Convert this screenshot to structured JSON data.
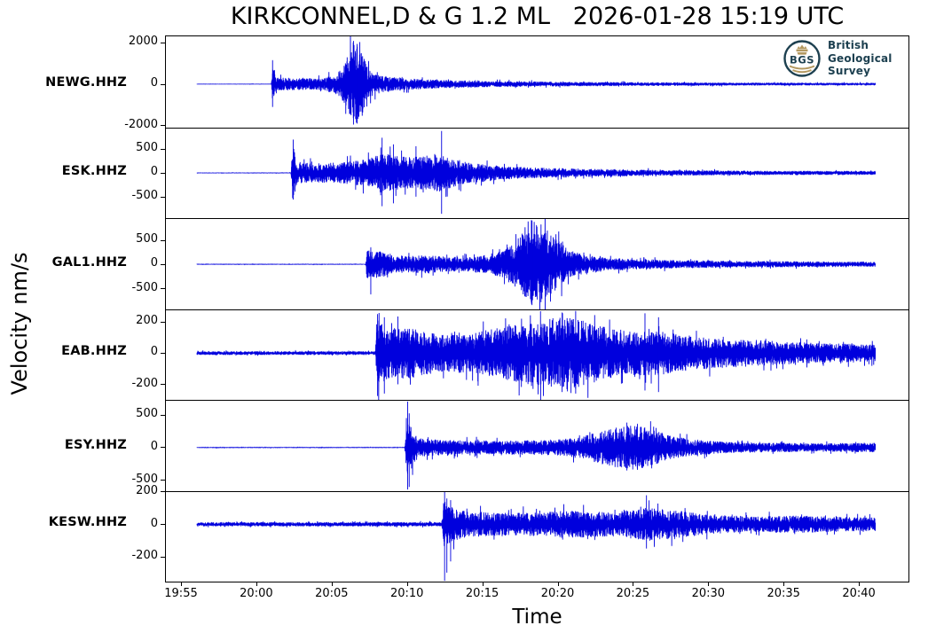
{
  "title": "KIRKCONNEL,D & G 1.2 ML   2026-01-28 15:19 UTC",
  "xlabel": "Time",
  "ylabel": "Velocity nm/s",
  "logo": {
    "abbr": "BGS",
    "lines": [
      "British",
      "Geological",
      "Survey"
    ],
    "teal": "#1d4050",
    "gold": "#b3985f"
  },
  "colors": {
    "trace": "#0000dd",
    "axis": "#000000",
    "background": "#ffffff"
  },
  "chart_data": {
    "type": "line",
    "title": "KIRKCONNEL,D & G 1.2 ML   2026-01-28 15:19 UTC",
    "xlabel": "Time",
    "ylabel": "Velocity nm/s",
    "x_tick_labels": [
      "19:55",
      "20:00",
      "20:05",
      "20:10",
      "20:15",
      "20:20",
      "20:25",
      "20:30",
      "20:35",
      "20:40"
    ],
    "x_tick_interval_min": 5,
    "trace_start_min": 1.06,
    "trace_end_min": 46.1,
    "grid": false,
    "legend": "none",
    "stations": [
      {
        "label": "NEWG.HHZ",
        "yticks": [
          2000,
          0,
          -2000
        ],
        "ylim": [
          -2100,
          2300
        ],
        "seed": 11,
        "envelope": [
          [
            1.06,
            15
          ],
          [
            6.0,
            15
          ],
          [
            6.06,
            900
          ],
          [
            6.3,
            320
          ],
          [
            8.0,
            280
          ],
          [
            9.5,
            300
          ],
          [
            10.3,
            500
          ],
          [
            10.8,
            900
          ],
          [
            11.2,
            1600
          ],
          [
            11.6,
            2050
          ],
          [
            12.0,
            1700
          ],
          [
            12.3,
            900
          ],
          [
            12.8,
            500
          ],
          [
            13.5,
            380
          ],
          [
            15,
            280
          ],
          [
            17,
            200
          ],
          [
            20,
            150
          ],
          [
            25,
            110
          ],
          [
            30,
            90
          ],
          [
            38,
            70
          ],
          [
            46.1,
            60
          ]
        ],
        "spikes": [
          [
            6.08,
            1150,
            -1100
          ],
          [
            11.45,
            2080,
            -1950
          ],
          [
            11.7,
            1800,
            -1900
          ]
        ]
      },
      {
        "label": "ESK.HHZ",
        "yticks": [
          500,
          0,
          -500
        ],
        "ylim": [
          -950,
          950
        ],
        "seed": 22,
        "envelope": [
          [
            1.06,
            9
          ],
          [
            7.3,
            9
          ],
          [
            7.42,
            650
          ],
          [
            7.7,
            220
          ],
          [
            9,
            200
          ],
          [
            11,
            230
          ],
          [
            12.5,
            300
          ],
          [
            13.3,
            420
          ],
          [
            14.0,
            380
          ],
          [
            15,
            330
          ],
          [
            16,
            350
          ],
          [
            17.2,
            420
          ],
          [
            18,
            300
          ],
          [
            19,
            220
          ],
          [
            20.5,
            170
          ],
          [
            22,
            130
          ],
          [
            25,
            100
          ],
          [
            28,
            80
          ],
          [
            32,
            60
          ],
          [
            38,
            45
          ],
          [
            46.1,
            40
          ]
        ],
        "spikes": [
          [
            7.45,
            700,
            -560
          ],
          [
            13.35,
            740,
            -700
          ],
          [
            14.1,
            600,
            -640
          ],
          [
            15.6,
            560,
            -500
          ],
          [
            17.3,
            880,
            -860
          ]
        ]
      },
      {
        "label": "GAL1.HHZ",
        "yticks": [
          500,
          0,
          -500
        ],
        "ylim": [
          -930,
          950
        ],
        "seed": 33,
        "envelope": [
          [
            1.06,
            9
          ],
          [
            12.25,
            9
          ],
          [
            12.35,
            320
          ],
          [
            12.7,
            260
          ],
          [
            13.2,
            300
          ],
          [
            13.8,
            200
          ],
          [
            15,
            170
          ],
          [
            16.5,
            190
          ],
          [
            17.5,
            150
          ],
          [
            19,
            150
          ],
          [
            20.5,
            200
          ],
          [
            21.5,
            300
          ],
          [
            22.3,
            520
          ],
          [
            23.0,
            750
          ],
          [
            23.6,
            820
          ],
          [
            24.3,
            700
          ],
          [
            25.0,
            500
          ],
          [
            25.8,
            300
          ],
          [
            26.8,
            200
          ],
          [
            28,
            150
          ],
          [
            30,
            110
          ],
          [
            33,
            85
          ],
          [
            37,
            65
          ],
          [
            42,
            58
          ],
          [
            46.1,
            52
          ]
        ],
        "spikes": [
          [
            12.6,
            350,
            -620
          ],
          [
            23.3,
            900,
            -840
          ],
          [
            23.9,
            820,
            -780
          ]
        ]
      },
      {
        "label": "EAB.HHZ",
        "yticks": [
          200,
          0,
          -200
        ],
        "ylim": [
          -300,
          280
        ],
        "seed": 44,
        "envelope": [
          [
            1.06,
            12
          ],
          [
            12.9,
            12
          ],
          [
            13.0,
            230
          ],
          [
            13.4,
            180
          ],
          [
            14,
            160
          ],
          [
            15,
            170
          ],
          [
            16,
            140
          ],
          [
            17.5,
            120
          ],
          [
            19,
            130
          ],
          [
            20.5,
            150
          ],
          [
            22,
            180
          ],
          [
            23.5,
            200
          ],
          [
            25,
            230
          ],
          [
            26,
            240
          ],
          [
            27,
            200
          ],
          [
            28.5,
            160
          ],
          [
            30,
            140
          ],
          [
            31.5,
            150
          ],
          [
            33,
            120
          ],
          [
            35,
            100
          ],
          [
            38,
            85
          ],
          [
            42,
            65
          ],
          [
            46.1,
            55
          ]
        ],
        "spikes": [
          [
            13.05,
            250,
            -275
          ],
          [
            13.5,
            230,
            -260
          ],
          [
            14.4,
            235,
            -200
          ],
          [
            25.3,
            260,
            -250
          ],
          [
            26.2,
            270,
            -260
          ],
          [
            30.8,
            255,
            -240
          ],
          [
            31.7,
            230,
            -250
          ]
        ]
      },
      {
        "label": "ESY.HHZ",
        "yticks": [
          500,
          0,
          -500
        ],
        "ylim": [
          -665,
          725
        ],
        "seed": 55,
        "envelope": [
          [
            1.06,
            8
          ],
          [
            14.85,
            8
          ],
          [
            15.0,
            430
          ],
          [
            15.3,
            300
          ],
          [
            15.8,
            140
          ],
          [
            17,
            120
          ],
          [
            19,
            110
          ],
          [
            21,
            100
          ],
          [
            23,
            110
          ],
          [
            25,
            120
          ],
          [
            26.5,
            160
          ],
          [
            28,
            260
          ],
          [
            29.3,
            330
          ],
          [
            30.5,
            340
          ],
          [
            31.5,
            260
          ],
          [
            32.5,
            180
          ],
          [
            34,
            120
          ],
          [
            36,
            90
          ],
          [
            39,
            70
          ],
          [
            43,
            65
          ],
          [
            46.1,
            70
          ]
        ],
        "spikes": [
          [
            15.05,
            700,
            -640
          ],
          [
            15.15,
            520,
            -600
          ],
          [
            29.6,
            380,
            -350
          ],
          [
            30.3,
            360,
            -340
          ]
        ]
      },
      {
        "label": "KESW.HHZ",
        "yticks": [
          200,
          0,
          -200
        ],
        "ylim": [
          -355,
          205
        ],
        "seed": 66,
        "envelope": [
          [
            1.06,
            13
          ],
          [
            17.3,
            13
          ],
          [
            17.45,
            150
          ],
          [
            17.8,
            120
          ],
          [
            18.5,
            90
          ],
          [
            20,
            75
          ],
          [
            22,
            70
          ],
          [
            24,
            75
          ],
          [
            25.5,
            85
          ],
          [
            27,
            80
          ],
          [
            28.5,
            75
          ],
          [
            30,
            90
          ],
          [
            31,
            105
          ],
          [
            32,
            95
          ],
          [
            33.5,
            80
          ],
          [
            35,
            60
          ],
          [
            38,
            48
          ],
          [
            41,
            55
          ],
          [
            44,
            45
          ],
          [
            46.1,
            42
          ]
        ],
        "spikes": [
          [
            17.5,
            205,
            -350
          ],
          [
            17.65,
            160,
            -300
          ],
          [
            17.9,
            150,
            -230
          ],
          [
            30.9,
            180,
            -150
          ]
        ]
      }
    ]
  }
}
